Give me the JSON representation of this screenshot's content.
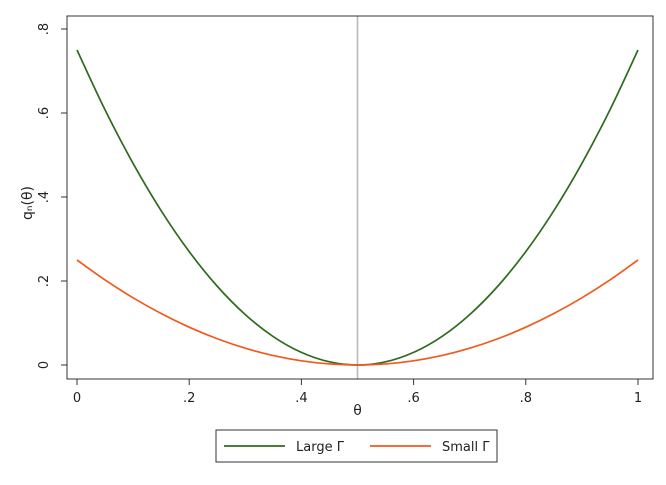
{
  "chart_data": {
    "type": "line",
    "title": "",
    "xlabel": "θ",
    "ylabel": "qₙ(θ)",
    "xlim": [
      0,
      1
    ],
    "ylim": [
      0,
      0.8
    ],
    "x_ticks": [
      0,
      0.2,
      0.4,
      0.6,
      0.8,
      1
    ],
    "x_tick_labels": [
      "0",
      ".2",
      ".4",
      ".6",
      ".8",
      "1"
    ],
    "y_ticks": [
      0,
      0.2,
      0.4,
      0.6,
      0.8
    ],
    "y_tick_labels": [
      "0",
      ".2",
      ".4",
      ".6",
      ".8"
    ],
    "grid": false,
    "legend_position": "bottom",
    "reference_line": {
      "x": 0.5,
      "color": "#bbbbbb"
    },
    "x": [
      0,
      0.05,
      0.1,
      0.15,
      0.2,
      0.25,
      0.3,
      0.35,
      0.4,
      0.45,
      0.5,
      0.55,
      0.6,
      0.65,
      0.7,
      0.75,
      0.8,
      0.85,
      0.9,
      0.95,
      1
    ],
    "series": [
      {
        "name": "Large Γ",
        "color": "#2e6b1e",
        "values": [
          0.75,
          0.6075,
          0.48,
          0.3675,
          0.27,
          0.1875,
          0.12,
          0.0675,
          0.03,
          0.0075,
          0,
          0.0075,
          0.03,
          0.0675,
          0.12,
          0.1875,
          0.27,
          0.3675,
          0.48,
          0.6075,
          0.75
        ]
      },
      {
        "name": "Small Γ",
        "color": "#f05a1e",
        "values": [
          0.25,
          0.2025,
          0.16,
          0.1225,
          0.09,
          0.0625,
          0.04,
          0.0225,
          0.01,
          0.0025,
          0,
          0.0025,
          0.01,
          0.0225,
          0.04,
          0.0625,
          0.09,
          0.1225,
          0.16,
          0.2025,
          0.25
        ]
      }
    ]
  }
}
